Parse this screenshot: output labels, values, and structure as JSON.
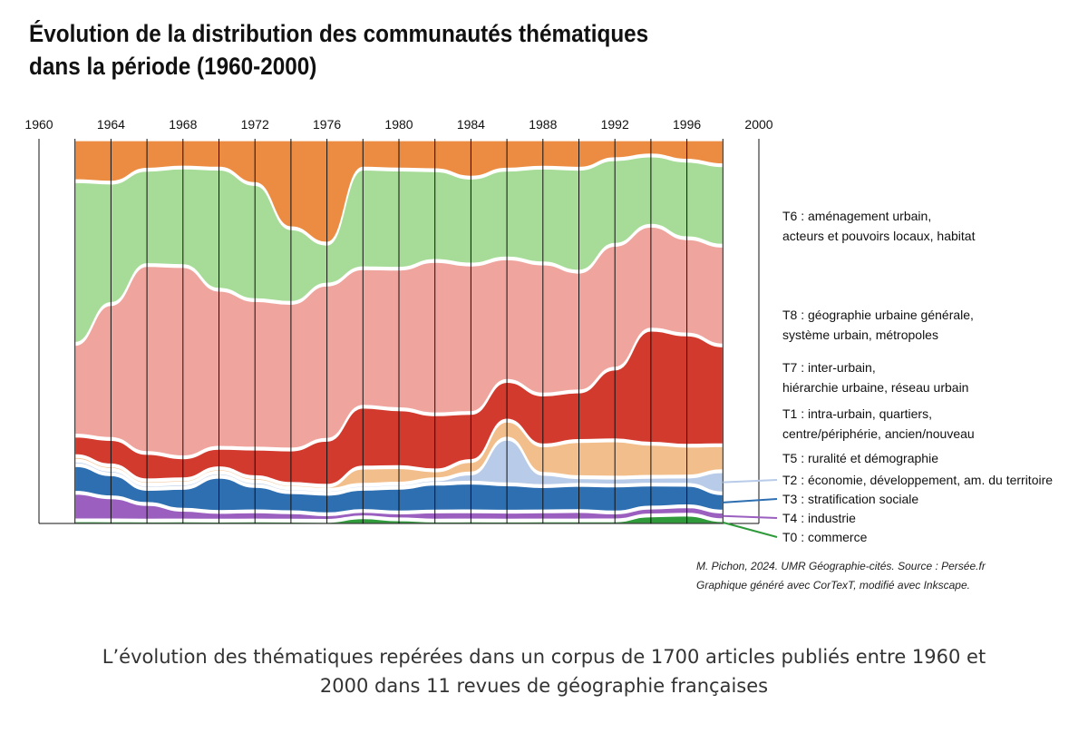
{
  "title_line1": "Évolution de la distribution des communautés thématiques",
  "title_line2": "dans la période (1960-2000)",
  "source_line1": "M. Pichon, 2024. UMR Géographie-cités. Source : Persée.fr",
  "source_line2": "Graphique généré avec CorTexT, modifié avec Inkscape.",
  "caption_line1": "L’évolution des thématiques repérées dans un corpus de 1700 articles publiés entre 1960 et",
  "caption_line2": "2000 dans 11 revues de géographie françaises",
  "chart_data": {
    "type": "area",
    "title": "Évolution de la distribution des communautés thématiques dans la période (1960-2000)",
    "x_ticks": [
      "1960",
      "1964",
      "1968",
      "1972",
      "1976",
      "1980",
      "1984",
      "1988",
      "1992",
      "1996",
      "2000"
    ],
    "x_range": [
      1960,
      2000
    ],
    "grid": true,
    "legend_position": "right",
    "x": [
      1962,
      1964,
      1966,
      1968,
      1970,
      1972,
      1974,
      1976,
      1978,
      1980,
      1982,
      1984,
      1986,
      1988,
      1990,
      1992,
      1994,
      1996,
      1998
    ],
    "series": [
      {
        "key": "T0",
        "label": "T0 : commerce",
        "color": "#2e9a3a",
        "values": [
          1,
          1,
          1,
          1,
          1,
          1,
          1,
          1,
          4,
          2,
          1,
          1,
          1,
          1,
          1,
          1,
          4,
          4,
          1
        ]
      },
      {
        "key": "T4",
        "label": "T4 : industrie",
        "color": "#9b5fc0",
        "values": [
          14,
          12,
          9,
          5,
          4,
          4,
          4,
          3,
          3,
          3,
          4,
          4,
          4,
          4,
          4,
          3,
          3,
          3,
          3
        ]
      },
      {
        "key": "T3",
        "label": "T3 : stratification sociale",
        "color": "#2e6fb2",
        "values": [
          14,
          12,
          8,
          12,
          22,
          14,
          12,
          14,
          16,
          16,
          16,
          16,
          16,
          14,
          14,
          14,
          12,
          10,
          8
        ]
      },
      {
        "key": "T2",
        "label": "T2 : économie, développement, am. du territoire",
        "color": "#b8cbe8",
        "values": [
          1,
          1,
          1,
          1,
          1,
          1,
          1,
          1,
          1,
          1,
          1,
          4,
          28,
          6,
          3,
          3,
          3,
          3,
          10
        ]
      },
      {
        "key": "T5",
        "label": "T5 : ruralité et démographie",
        "color": "#f2bf8c",
        "values": [
          1,
          1,
          1,
          1,
          1,
          1,
          1,
          1,
          12,
          10,
          4,
          6,
          10,
          16,
          20,
          20,
          18,
          15,
          12
        ]
      },
      {
        "key": "T1",
        "label": "T1 : intra-urbain, quartiers, centre/périphérie, ancien/nouveau",
        "color": "#d23a2e",
        "values": [
          10,
          14,
          16,
          12,
          12,
          16,
          22,
          34,
          48,
          40,
          34,
          28,
          24,
          30,
          28,
          40,
          66,
          58,
          50
        ]
      },
      {
        "key": "T7",
        "label": "T7 : inter-urbain, hiérarchie urbaine, réseau urbain",
        "color": "#f0a49e",
        "values": [
          50,
          78,
          120,
          118,
          105,
          90,
          100,
          120,
          112,
          100,
          96,
          90,
          78,
          80,
          70,
          70,
          60,
          50,
          50
        ]
      },
      {
        "key": "T8",
        "label": "T8 : géographie urbaine générale, système urbain, métropoles",
        "color": "#a6dc98",
        "values": [
          90,
          70,
          60,
          60,
          80,
          70,
          50,
          30,
          80,
          70,
          56,
          52,
          56,
          58,
          60,
          48,
          40,
          40,
          40
        ]
      },
      {
        "key": "T6",
        "label": "T6 : aménagement urbain, acteurs et pouvoirs locaux, habitat",
        "color": "#ec8c42",
        "values": [
          22,
          24,
          18,
          16,
          18,
          26,
          60,
          80,
          22,
          20,
          18,
          22,
          18,
          16,
          16,
          10,
          8,
          10,
          12
        ]
      }
    ]
  }
}
